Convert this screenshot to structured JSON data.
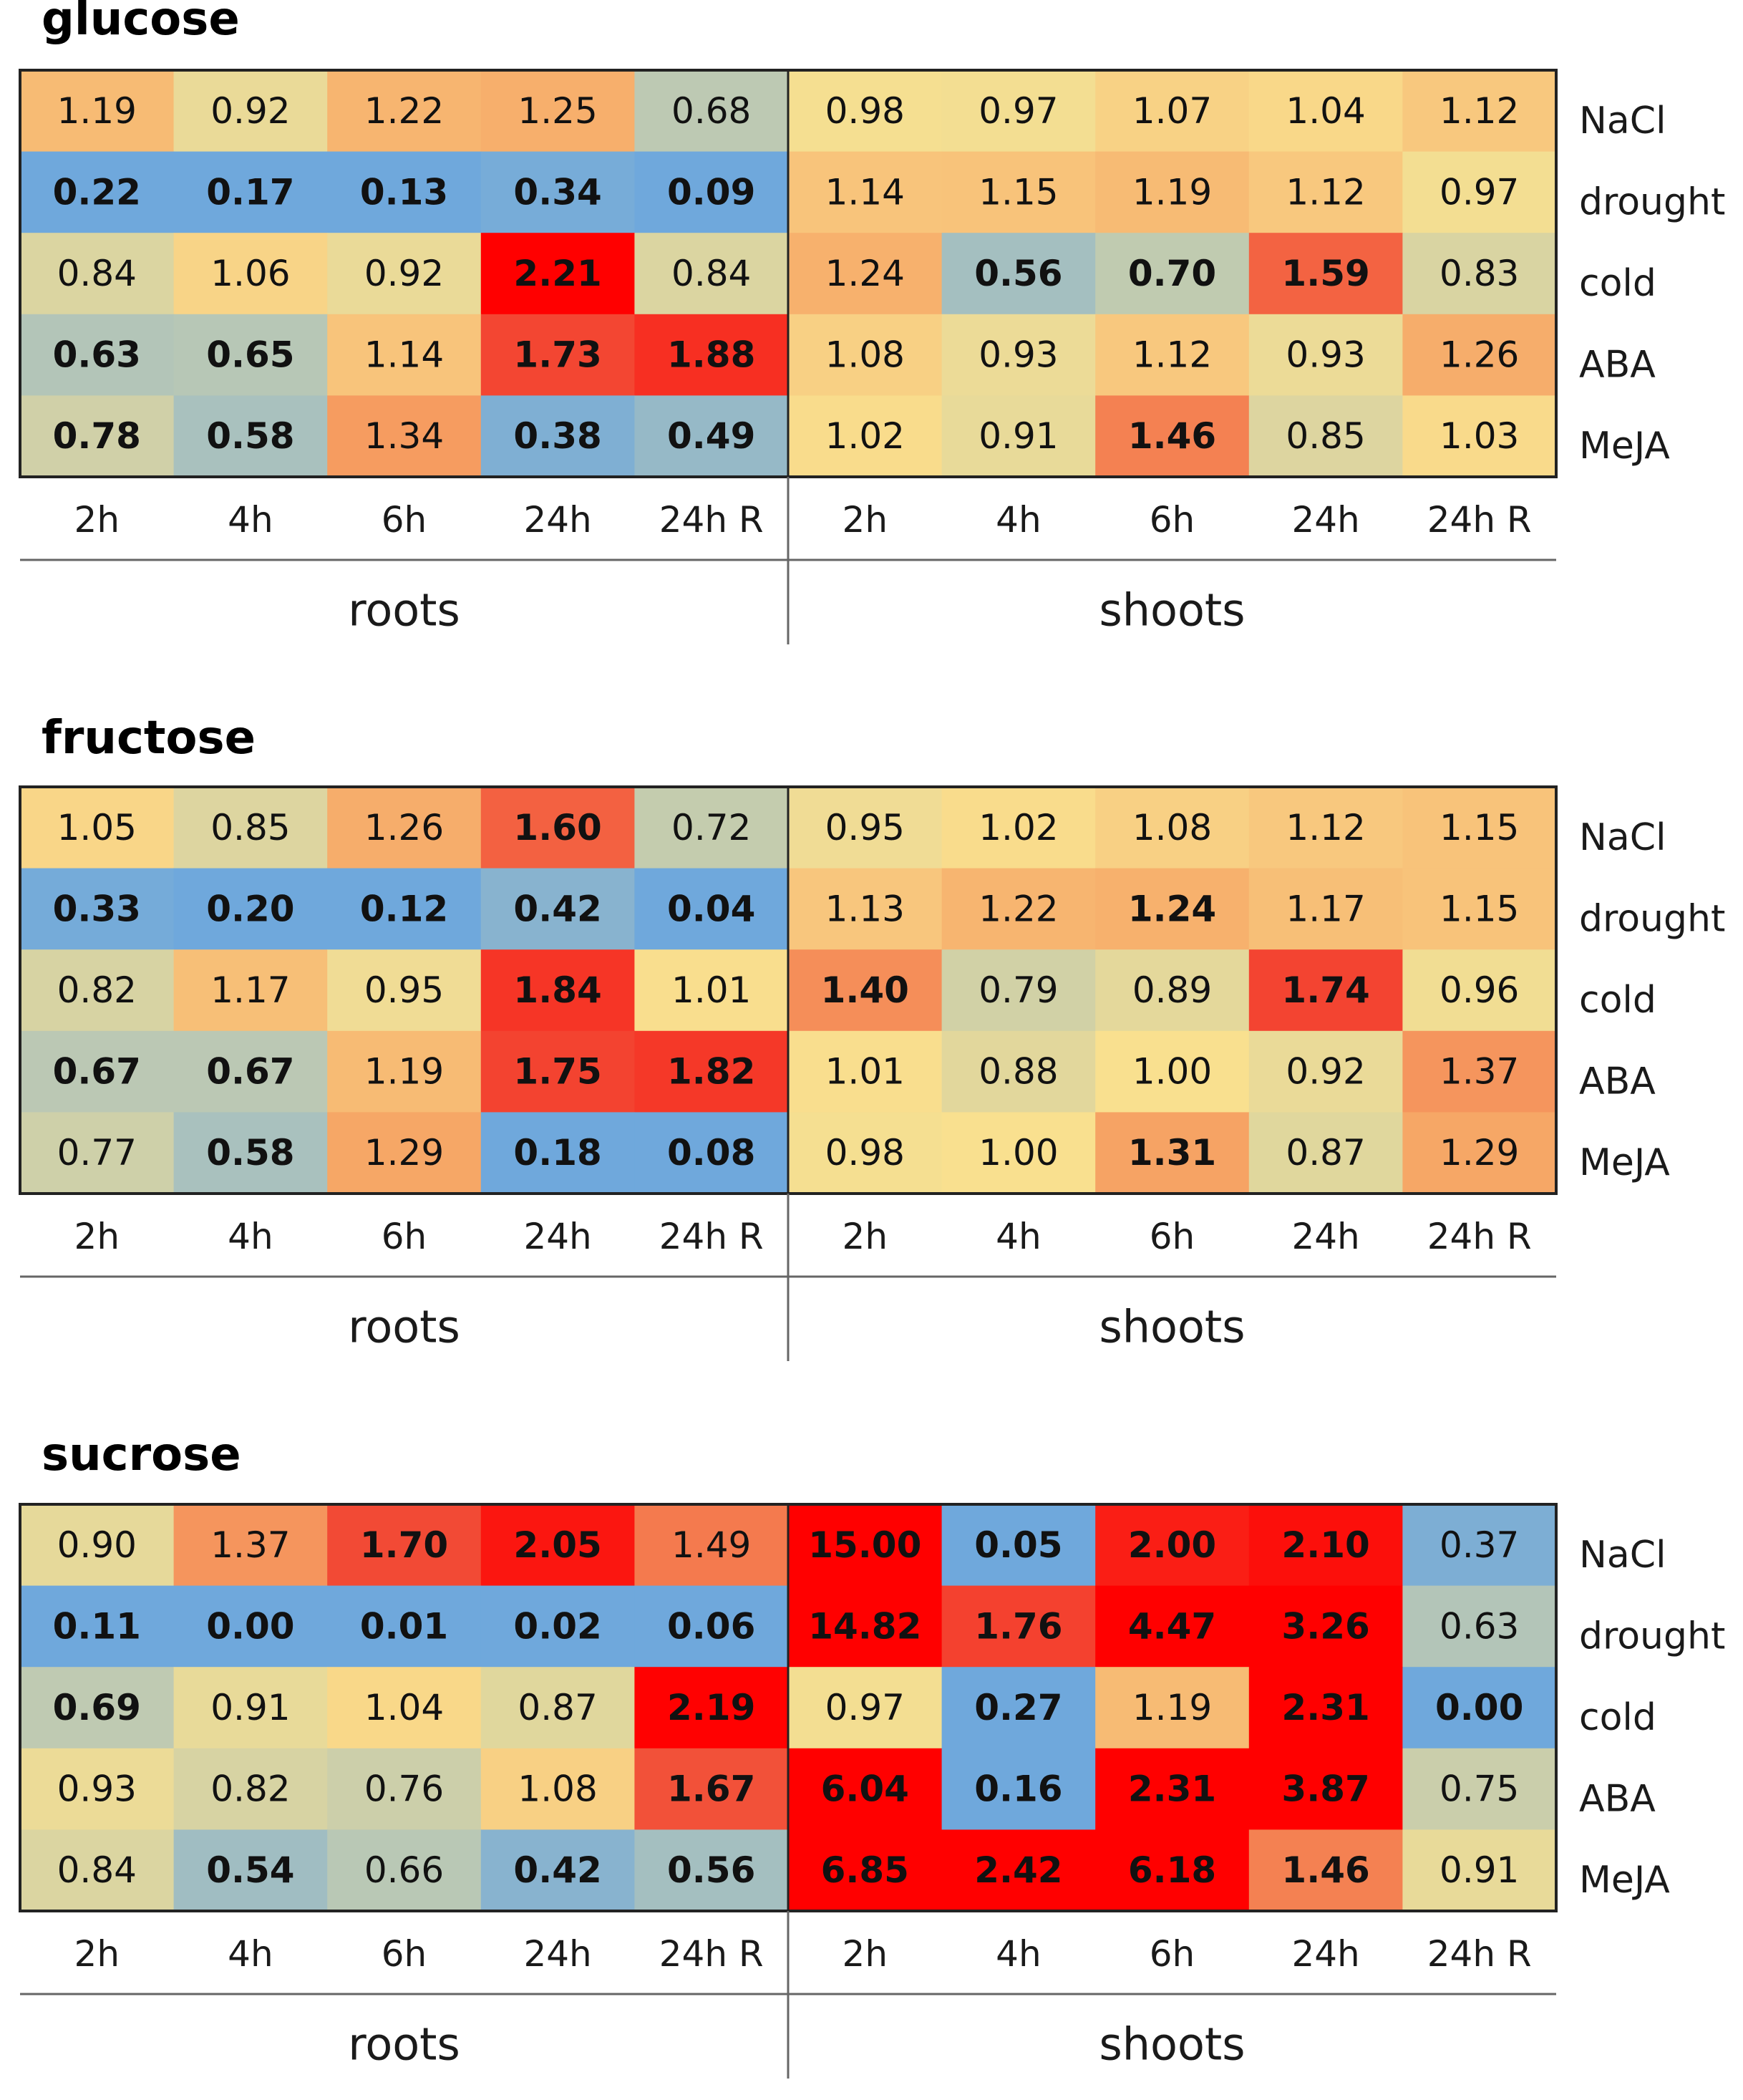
{
  "chart_data": [
    {
      "type": "heatmap",
      "title": "glucose",
      "columns": [
        "2h",
        "4h",
        "6h",
        "24h",
        "24h R",
        "2h",
        "4h",
        "6h",
        "24h",
        "24h R"
      ],
      "groups": [
        "roots",
        "shoots"
      ],
      "rows": [
        "NaCl",
        "drought",
        "cold",
        "ABA",
        "MeJA"
      ],
      "values": [
        [
          "1.19",
          "0.92",
          "1.22",
          "1.25",
          "0.68",
          "0.98",
          "0.97",
          "1.07",
          "1.04",
          "1.12"
        ],
        [
          "0.22",
          "0.17",
          "0.13",
          "0.34",
          "0.09",
          "1.14",
          "1.15",
          "1.19",
          "1.12",
          "0.97"
        ],
        [
          "0.84",
          "1.06",
          "0.92",
          "2.21",
          "0.84",
          "1.24",
          "0.56",
          "0.70",
          "1.59",
          "0.83"
        ],
        [
          "0.63",
          "0.65",
          "1.14",
          "1.73",
          "1.88",
          "1.08",
          "0.93",
          "1.12",
          "0.93",
          "1.26"
        ],
        [
          "0.78",
          "0.58",
          "1.34",
          "0.38",
          "0.49",
          "1.02",
          "0.91",
          "1.46",
          "0.85",
          "1.03"
        ]
      ],
      "bold": [
        [
          0,
          0,
          0,
          0,
          0,
          0,
          0,
          0,
          0,
          0
        ],
        [
          1,
          1,
          1,
          1,
          1,
          0,
          0,
          0,
          0,
          0
        ],
        [
          0,
          0,
          0,
          1,
          0,
          0,
          1,
          1,
          1,
          0
        ],
        [
          1,
          1,
          0,
          1,
          1,
          0,
          0,
          0,
          0,
          0
        ],
        [
          1,
          1,
          0,
          1,
          1,
          0,
          0,
          1,
          0,
          0
        ]
      ]
    },
    {
      "type": "heatmap",
      "title": "fructose",
      "columns": [
        "2h",
        "4h",
        "6h",
        "24h",
        "24h R",
        "2h",
        "4h",
        "6h",
        "24h",
        "24h R"
      ],
      "groups": [
        "roots",
        "shoots"
      ],
      "rows": [
        "NaCl",
        "drought",
        "cold",
        "ABA",
        "MeJA"
      ],
      "values": [
        [
          "1.05",
          "0.85",
          "1.26",
          "1.60",
          "0.72",
          "0.95",
          "1.02",
          "1.08",
          "1.12",
          "1.15"
        ],
        [
          "0.33",
          "0.20",
          "0.12",
          "0.42",
          "0.04",
          "1.13",
          "1.22",
          "1.24",
          "1.17",
          "1.15"
        ],
        [
          "0.82",
          "1.17",
          "0.95",
          "1.84",
          "1.01",
          "1.40",
          "0.79",
          "0.89",
          "1.74",
          "0.96"
        ],
        [
          "0.67",
          "0.67",
          "1.19",
          "1.75",
          "1.82",
          "1.01",
          "0.88",
          "1.00",
          "0.92",
          "1.37"
        ],
        [
          "0.77",
          "0.58",
          "1.29",
          "0.18",
          "0.08",
          "0.98",
          "1.00",
          "1.31",
          "0.87",
          "1.29"
        ]
      ],
      "bold": [
        [
          0,
          0,
          0,
          1,
          0,
          0,
          0,
          0,
          0,
          0
        ],
        [
          1,
          1,
          1,
          1,
          1,
          0,
          0,
          1,
          0,
          0
        ],
        [
          0,
          0,
          0,
          1,
          0,
          1,
          0,
          0,
          1,
          0
        ],
        [
          1,
          1,
          0,
          1,
          1,
          0,
          0,
          0,
          0,
          0
        ],
        [
          0,
          1,
          0,
          1,
          1,
          0,
          0,
          1,
          0,
          0
        ]
      ]
    },
    {
      "type": "heatmap",
      "title": "sucrose",
      "columns": [
        "2h",
        "4h",
        "6h",
        "24h",
        "24h R",
        "2h",
        "4h",
        "6h",
        "24h",
        "24h R"
      ],
      "groups": [
        "roots",
        "shoots"
      ],
      "rows": [
        "NaCl",
        "drought",
        "cold",
        "ABA",
        "MeJA"
      ],
      "values": [
        [
          "0.90",
          "1.37",
          "1.70",
          "2.05",
          "1.49",
          "15.00",
          "0.05",
          "2.00",
          "2.10",
          "0.37"
        ],
        [
          "0.11",
          "0.00",
          "0.01",
          "0.02",
          "0.06",
          "14.82",
          "1.76",
          "4.47",
          "3.26",
          "0.63"
        ],
        [
          "0.69",
          "0.91",
          "1.04",
          "0.87",
          "2.19",
          "0.97",
          "0.27",
          "1.19",
          "2.31",
          "0.00"
        ],
        [
          "0.93",
          "0.82",
          "0.76",
          "1.08",
          "1.67",
          "6.04",
          "0.16",
          "2.31",
          "3.87",
          "0.75"
        ],
        [
          "0.84",
          "0.54",
          "0.66",
          "0.42",
          "0.56",
          "6.85",
          "2.42",
          "6.18",
          "1.46",
          "0.91"
        ]
      ],
      "bold": [
        [
          0,
          0,
          1,
          1,
          0,
          1,
          1,
          1,
          1,
          0
        ],
        [
          1,
          1,
          1,
          1,
          1,
          1,
          1,
          1,
          1,
          0
        ],
        [
          1,
          0,
          0,
          0,
          1,
          0,
          1,
          0,
          1,
          1
        ],
        [
          0,
          0,
          0,
          0,
          1,
          1,
          1,
          1,
          1,
          0
        ],
        [
          0,
          1,
          0,
          1,
          1,
          1,
          1,
          1,
          1,
          0
        ]
      ]
    }
  ],
  "colors": {
    "low": "#6fa8dc",
    "mid_low": "#b7c7b6",
    "neutral": "#f9e08f",
    "mid_high": "#f6a565",
    "high": "#f24a35",
    "max": "#ff0000",
    "text_dark": "#111111",
    "border": "#222222",
    "separator": "#666666"
  }
}
